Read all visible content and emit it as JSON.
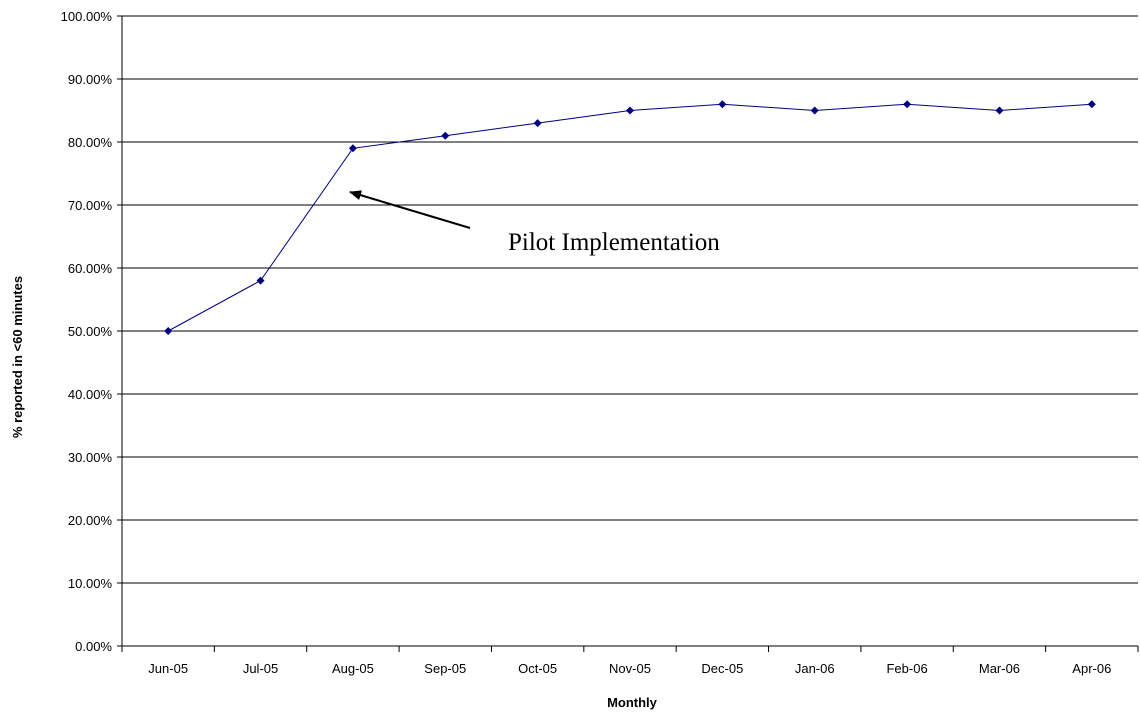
{
  "chart_data": {
    "type": "line",
    "categories": [
      "Jun-05",
      "Jul-05",
      "Aug-05",
      "Sep-05",
      "Oct-05",
      "Nov-05",
      "Dec-05",
      "Jan-06",
      "Feb-06",
      "Mar-06",
      "Apr-06"
    ],
    "series": [
      {
        "values": [
          0.5,
          0.58,
          0.79,
          0.81,
          0.83,
          0.85,
          0.86,
          0.85,
          0.86,
          0.85,
          0.86
        ],
        "color": "#000080"
      }
    ],
    "ylim": [
      0,
      1
    ],
    "yticks": [
      "0.00%",
      "10.00%",
      "20.00%",
      "30.00%",
      "40.00%",
      "50.00%",
      "60.00%",
      "70.00%",
      "80.00%",
      "90.00%",
      "100.00%"
    ],
    "xlabel": "Monthly",
    "ylabel": "% reported in <60 minutes",
    "grid": true,
    "legend": "none",
    "annotations": [
      {
        "text": "Pilot Implementation",
        "points_to": "Aug-05"
      }
    ]
  }
}
